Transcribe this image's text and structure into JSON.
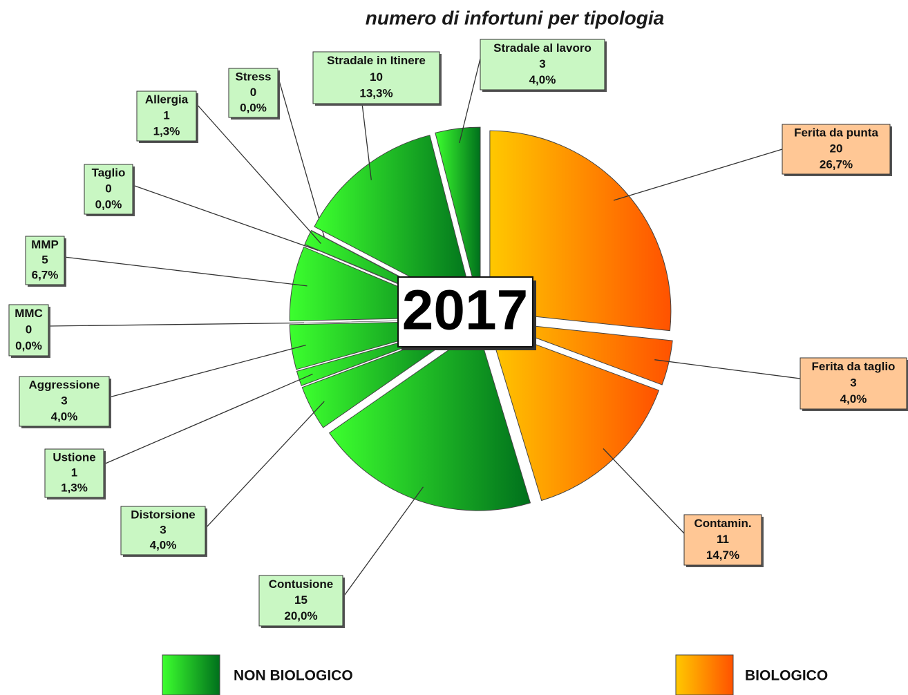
{
  "chart_data": {
    "type": "pie",
    "title": "numero di infortuni per tipologia",
    "center_label": "2017",
    "categories": [
      "Ferita da punta",
      "Ferita da taglio",
      "Contamin.",
      "Contusione",
      "Distorsione",
      "Ustione",
      "Aggressione",
      "MMC",
      "MMP",
      "Taglio",
      "Allergia",
      "Stress",
      "Stradale in Itinere",
      "Stradale al lavoro"
    ],
    "values": [
      20,
      3,
      11,
      15,
      3,
      1,
      3,
      0,
      5,
      0,
      1,
      0,
      10,
      3
    ],
    "percentage_labels": [
      "26,7%",
      "4,0%",
      "14,7%",
      "20,0%",
      "4,0%",
      "1,3%",
      "4,0%",
      "0,0%",
      "6,7%",
      "0,0%",
      "1,3%",
      "0,0%",
      "13,3%",
      "4,0%"
    ],
    "slice_group": [
      "BIOLOGICO",
      "BIOLOGICO",
      "BIOLOGICO",
      "NON BIOLOGICO",
      "NON BIOLOGICO",
      "NON BIOLOGICO",
      "NON BIOLOGICO",
      "NON BIOLOGICO",
      "NON BIOLOGICO",
      "NON BIOLOGICO",
      "NON BIOLOGICO",
      "NON BIOLOGICO",
      "NON BIOLOGICO",
      "NON BIOLOGICO"
    ],
    "groups": [
      {
        "name": "NON BIOLOGICO",
        "colors": [
          "#3cff2e",
          "#00701c"
        ],
        "label_fill": "#c9f7c3"
      },
      {
        "name": "BIOLOGICO",
        "colors": [
          "#ffc800",
          "#ff5200"
        ],
        "label_fill": "#ffc795"
      }
    ]
  }
}
